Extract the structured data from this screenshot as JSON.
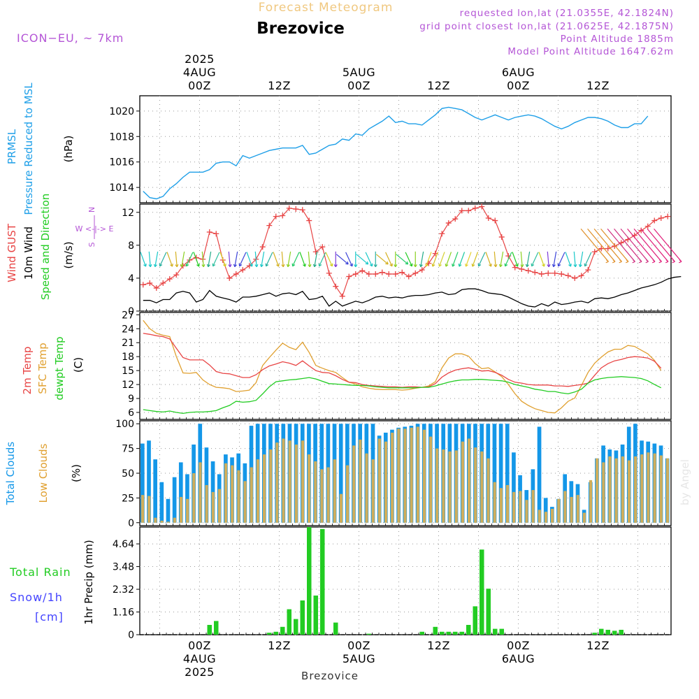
{
  "header": {
    "product": "Forecast Meteogram",
    "location": "Brezovice",
    "model": "ICON−EU, ~ 7km",
    "requested": "requested lon,lat (21.0355E, 42.1824N)",
    "gridpoint": "grid point closest lon,lat (21.0625E, 42.1875N)",
    "point_alt": "Point Altitude 1885m",
    "model_alt": "Model Point Altitude 1647.62m",
    "footer": "Brezovice",
    "credit": "by Angel"
  },
  "colors": {
    "pressure": "#1e9fe8",
    "gust": "#e84545",
    "wind10m": "#000000",
    "t2m": "#e84545",
    "sfc": "#e0a030",
    "dewpt": "#22cc22",
    "total_clouds": "#1497e8",
    "low_clouds": "#cfae5c",
    "rain": "#22cc22",
    "snow": "#4444ff",
    "title": "#f0c880",
    "info": "#b455d6"
  },
  "time_axis": {
    "top_labels": [
      {
        "x": 9,
        "lines": [
          "2025",
          "4AUG",
          "00Z"
        ]
      },
      {
        "x": 21,
        "lines": [
          "12Z"
        ]
      },
      {
        "x": 33,
        "lines": [
          "5AUG",
          "00Z"
        ]
      },
      {
        "x": 45,
        "lines": [
          "12Z"
        ]
      },
      {
        "x": 57,
        "lines": [
          "6AUG",
          "00Z"
        ]
      },
      {
        "x": 69,
        "lines": [
          "12Z"
        ]
      }
    ],
    "bottom_labels": [
      {
        "x": 9,
        "lines": [
          "00Z",
          "4AUG",
          "2025"
        ]
      },
      {
        "x": 21,
        "lines": [
          "12Z"
        ]
      },
      {
        "x": 33,
        "lines": [
          "00Z",
          "5AUG"
        ]
      },
      {
        "x": 45,
        "lines": [
          "12Z"
        ]
      },
      {
        "x": 57,
        "lines": [
          "00Z",
          "6AUG"
        ]
      },
      {
        "x": 69,
        "lines": [
          "12Z"
        ]
      }
    ]
  },
  "chart_data": [
    {
      "type": "line",
      "panel": "pressure",
      "title_lines": [
        "PRMSL",
        "Pressure Reduced to MSL"
      ],
      "ylabel": "(hPa)",
      "ylim": [
        1012.8,
        1021.2
      ],
      "yticks": [
        1014,
        1016,
        1018,
        1020
      ],
      "grid": true,
      "series": [
        {
          "name": "PRMSL",
          "values": [
            1013.7,
            1013.2,
            1013.1,
            1013.3,
            1013.9,
            1014.3,
            1014.8,
            1015.2,
            1015.2,
            1015.2,
            1015.4,
            1015.9,
            1016.0,
            1016.0,
            1015.7,
            1016.5,
            1016.3,
            1016.5,
            1016.7,
            1016.9,
            1017.0,
            1017.1,
            1017.1,
            1017.1,
            1017.3,
            1016.6,
            1016.7,
            1017.0,
            1017.3,
            1017.4,
            1017.8,
            1017.7,
            1018.2,
            1018.1,
            1018.6,
            1018.9,
            1019.2,
            1019.6,
            1019.1,
            1019.2,
            1019.0,
            1019.0,
            1018.9,
            1019.3,
            1019.7,
            1020.2,
            1020.3,
            1020.2,
            1020.1,
            1019.8,
            1019.5,
            1019.3,
            1019.5,
            1019.7,
            1019.5,
            1019.3,
            1019.5,
            1019.6,
            1019.7,
            1019.6,
            1019.4,
            1019.1,
            1018.8,
            1018.6,
            1018.8,
            1019.1,
            1019.3,
            1019.5,
            1019.5,
            1019.4,
            1019.2,
            1018.9,
            1018.7,
            1018.7,
            1019.0,
            1019.0,
            1019.6
          ]
        }
      ]
    },
    {
      "type": "line",
      "panel": "wind",
      "title_lines": [
        "Wind GUST",
        "10m Wind",
        "Speed and Direction"
      ],
      "ylabel": "(m/s)",
      "compass": [
        "N",
        "W <-|-> E",
        "S"
      ],
      "ylim": [
        0,
        13
      ],
      "yticks": [
        0,
        4,
        8,
        12
      ],
      "grid": true,
      "series": [
        {
          "name": "Wind GUST",
          "values": [
            3.2,
            3.4,
            2.8,
            3.4,
            3.9,
            4.4,
            5.5,
            6.2,
            6.5,
            6.3,
            9.6,
            9.4,
            6.2,
            4.0,
            4.5,
            5.0,
            5.5,
            6.3,
            7.8,
            10.4,
            11.5,
            11.6,
            12.5,
            12.4,
            12.3,
            11.0,
            7.2,
            7.8,
            4.6,
            3.0,
            1.8,
            4.2,
            4.5,
            4.9,
            4.5,
            4.5,
            4.7,
            4.5,
            4.5,
            4.7,
            4.2,
            4.6,
            5.0,
            5.8,
            7.0,
            9.4,
            10.7,
            11.2,
            12.2,
            12.2,
            12.5,
            12.7,
            11.3,
            11.0,
            9.0,
            6.7,
            5.3,
            5.1,
            4.9,
            4.7,
            4.5,
            4.6,
            4.6,
            4.5,
            4.3,
            4.0,
            4.3,
            5.0,
            7.2,
            7.6,
            7.6,
            7.9,
            8.3,
            8.7,
            9.2,
            9.8,
            10.3,
            11.0,
            11.3,
            11.5
          ]
        },
        {
          "name": "10m Wind",
          "values": [
            1.3,
            1.3,
            1.0,
            1.4,
            1.4,
            2.2,
            2.4,
            2.2,
            1.1,
            1.4,
            2.5,
            1.8,
            1.6,
            1.4,
            1.1,
            1.7,
            1.7,
            1.8,
            2.0,
            2.2,
            1.8,
            2.1,
            2.2,
            2.0,
            2.4,
            1.4,
            1.5,
            1.8,
            0.6,
            1.2,
            0.6,
            0.9,
            1.2,
            1.0,
            1.3,
            1.7,
            1.8,
            1.6,
            1.7,
            1.6,
            1.8,
            1.9,
            1.9,
            2.0,
            2.2,
            2.3,
            2.0,
            2.1,
            2.6,
            2.7,
            2.7,
            2.5,
            2.2,
            2.1,
            2.0,
            1.7,
            1.3,
            0.9,
            0.6,
            0.5,
            0.9,
            0.6,
            1.1,
            0.8,
            0.9,
            1.1,
            1.2,
            1.0,
            1.5,
            1.6,
            1.5,
            1.7,
            2.0,
            2.2,
            2.5,
            2.8,
            3.0,
            3.2,
            3.5,
            3.9,
            4.1,
            4.2
          ]
        }
      ]
    },
    {
      "type": "line",
      "panel": "temperature",
      "title_lines": [
        "2m Temp",
        "SFC Temp",
        "dewpt Temp"
      ],
      "ylabel": "(C)",
      "ylim": [
        4.5,
        27.5
      ],
      "yticks": [
        6,
        9,
        12,
        15,
        18,
        21,
        24,
        27
      ],
      "grid": true,
      "series": [
        {
          "name": "2m Temp",
          "values": [
            23.0,
            22.8,
            22.5,
            22.3,
            21.8,
            19.8,
            17.8,
            17.3,
            17.3,
            17.3,
            16.2,
            14.8,
            14.4,
            14.3,
            13.9,
            13.5,
            13.5,
            14.1,
            15.2,
            16.0,
            16.4,
            16.9,
            16.6,
            16.1,
            17.1,
            16.0,
            15.0,
            14.6,
            14.5,
            13.9,
            13.1,
            12.5,
            12.4,
            12.0,
            11.8,
            11.7,
            11.6,
            11.5,
            11.5,
            11.4,
            11.5,
            11.5,
            11.4,
            11.5,
            12.2,
            13.6,
            14.5,
            15.1,
            15.4,
            15.6,
            15.3,
            14.9,
            15.0,
            14.6,
            14.0,
            13.1,
            12.5,
            12.3,
            12.0,
            11.9,
            11.9,
            11.9,
            11.7,
            11.7,
            11.6,
            11.8,
            12.0,
            12.3,
            14.0,
            15.6,
            16.5,
            17.1,
            17.4,
            17.8,
            18.0,
            17.9,
            17.7,
            17.0,
            15.5
          ]
        },
        {
          "name": "SFC Temp",
          "values": [
            25.8,
            24.0,
            23.0,
            22.6,
            22.3,
            18.0,
            14.5,
            14.4,
            14.6,
            13.0,
            12.0,
            11.4,
            11.3,
            11.1,
            10.5,
            10.6,
            10.8,
            12.4,
            16.1,
            17.8,
            19.4,
            20.9,
            20.0,
            19.5,
            21.1,
            18.9,
            16.1,
            15.5,
            15.0,
            14.6,
            13.5,
            12.5,
            12.1,
            11.5,
            11.2,
            11.0,
            10.9,
            10.9,
            10.9,
            10.8,
            10.9,
            11.2,
            11.4,
            11.7,
            12.6,
            15.6,
            17.7,
            18.6,
            18.6,
            18.1,
            16.5,
            15.4,
            15.6,
            14.7,
            13.7,
            12.0,
            10.0,
            8.4,
            7.5,
            6.8,
            6.4,
            6.0,
            5.9,
            7.0,
            8.4,
            9.1,
            11.8,
            14.6,
            16.6,
            17.9,
            19.0,
            19.6,
            19.6,
            20.4,
            20.2,
            19.4,
            18.6,
            17.2,
            15.0
          ]
        },
        {
          "name": "dewpt Temp",
          "values": [
            6.6,
            6.4,
            6.2,
            6.1,
            6.3,
            6.0,
            5.8,
            6.0,
            6.1,
            6.1,
            6.2,
            6.4,
            7.0,
            7.5,
            8.4,
            8.2,
            8.3,
            8.6,
            10.0,
            11.5,
            12.6,
            12.8,
            13.0,
            13.1,
            13.3,
            13.5,
            13.2,
            12.7,
            12.2,
            12.1,
            12.0,
            11.9,
            11.8,
            11.8,
            11.7,
            11.5,
            11.4,
            11.3,
            11.3,
            11.3,
            11.3,
            11.3,
            11.4,
            11.4,
            11.7,
            12.1,
            12.5,
            12.8,
            13.0,
            13.0,
            13.1,
            13.1,
            13.0,
            12.9,
            12.8,
            12.5,
            12.0,
            11.7,
            11.4,
            11.0,
            10.8,
            10.5,
            10.5,
            10.2,
            10.0,
            10.4,
            11.0,
            12.3,
            13.0,
            13.3,
            13.5,
            13.6,
            13.7,
            13.6,
            13.5,
            13.3,
            12.8,
            12.0,
            11.3
          ]
        }
      ]
    },
    {
      "type": "bar",
      "panel": "clouds",
      "title_lines": [
        "Total Clouds",
        "Low Clouds"
      ],
      "ylabel": "(%)",
      "ylim": [
        -3,
        103
      ],
      "yticks": [
        0,
        25,
        50,
        75,
        100
      ],
      "grid": true,
      "series": [
        {
          "name": "Total Clouds",
          "values": [
            80,
            83,
            64,
            41,
            24,
            46,
            61,
            49,
            79,
            100,
            76,
            62,
            49,
            69,
            66,
            70,
            60,
            98,
            100,
            100,
            100,
            100,
            100,
            100,
            100,
            100,
            100,
            100,
            100,
            100,
            100,
            100,
            100,
            100,
            100,
            100,
            100,
            88,
            91,
            94,
            96,
            97,
            98,
            100,
            100,
            100,
            100,
            100,
            100,
            100,
            100,
            100,
            100,
            100,
            100,
            100,
            100,
            100,
            71,
            48,
            33,
            54,
            97,
            25,
            16,
            24,
            49,
            42,
            39,
            13,
            41,
            65,
            78,
            74,
            73,
            79,
            97,
            100,
            83,
            82,
            80,
            78,
            65
          ]
        },
        {
          "name": "Low Clouds",
          "values": [
            28,
            27,
            5,
            2,
            1,
            5,
            26,
            24,
            50,
            61,
            38,
            31,
            34,
            60,
            58,
            53,
            42,
            56,
            64,
            69,
            74,
            81,
            85,
            83,
            79,
            83,
            69,
            62,
            54,
            56,
            64,
            29,
            58,
            78,
            84,
            70,
            64,
            85,
            82,
            91,
            95,
            95,
            96,
            97,
            94,
            87,
            75,
            74,
            72,
            73,
            82,
            85,
            76,
            72,
            65,
            41,
            35,
            38,
            31,
            32,
            23,
            33,
            13,
            11,
            14,
            24,
            32,
            26,
            28,
            10,
            43,
            65,
            61,
            67,
            65,
            67,
            63,
            67,
            69,
            71,
            70,
            68,
            65
          ]
        }
      ]
    },
    {
      "type": "bar",
      "panel": "precip",
      "title_lines": [
        "Total Rain",
        "Snow/1h",
        "[cm]"
      ],
      "ylabel": "1hr Precip (mm)",
      "ylim": [
        0,
        5.5
      ],
      "yticks": [
        0,
        1.16,
        2.32,
        3.48,
        4.64
      ],
      "ytick_labels": [
        "0",
        "1.16",
        "2.32",
        "3.48",
        "4.64"
      ],
      "grid": true,
      "series": [
        {
          "name": "Total Rain",
          "values": [
            0,
            0,
            0,
            0,
            0,
            0,
            0,
            0,
            0,
            0,
            0.5,
            0.7,
            0,
            0,
            0,
            0,
            0,
            0,
            0,
            0.1,
            0.15,
            0.4,
            1.3,
            0.8,
            1.75,
            5.55,
            2.0,
            5.4,
            0,
            0.62,
            0,
            0,
            0,
            0,
            0.05,
            0,
            0,
            0,
            0,
            0,
            0,
            0,
            0.15,
            0,
            0.4,
            0.15,
            0.15,
            0.15,
            0.15,
            0.5,
            1.45,
            4.35,
            2.35,
            0.3,
            0.3,
            0,
            0,
            0,
            0,
            0,
            0,
            0,
            0,
            0,
            0,
            0,
            0,
            0,
            0.1,
            0.3,
            0.25,
            0.2,
            0.25,
            0,
            0,
            0,
            0,
            0,
            0,
            0
          ]
        }
      ]
    }
  ]
}
